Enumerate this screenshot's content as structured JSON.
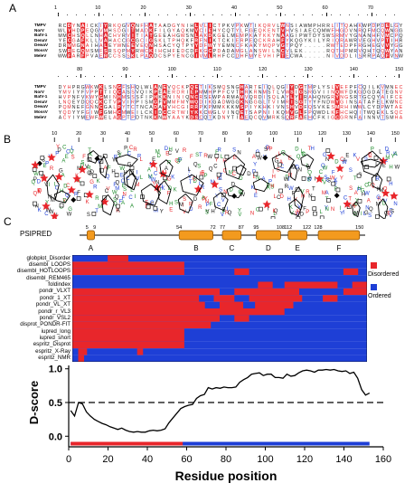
{
  "panels": {
    "a": "A",
    "b": "B",
    "c": "C"
  },
  "alignment": {
    "sequences": [
      "TMPV",
      "NorV",
      "BatV-1",
      "DenaV",
      "DewaV",
      "MossV",
      "MeleV"
    ],
    "block1_ticks": [
      "1",
      "10",
      "20",
      "30",
      "40",
      "50",
      "60",
      "70"
    ],
    "block2_ticks": [
      "80",
      "90",
      "100",
      "110",
      "120",
      "130",
      "140",
      "150"
    ]
  },
  "helical": {
    "ticks": [
      "10",
      "20",
      "30",
      "40",
      "50",
      "60",
      "70",
      "80",
      "90",
      "100",
      "110",
      "120",
      "130",
      "140",
      "150"
    ]
  },
  "psipred": {
    "label": "PSIPRED",
    "numbers": [
      "5",
      "9",
      "54",
      "72",
      "77",
      "87",
      "95",
      "108",
      "112",
      "122",
      "128",
      "150"
    ],
    "helices": [
      "A",
      "B",
      "C",
      "D",
      "E",
      "F"
    ]
  },
  "disorder": {
    "predictors": [
      "globplot_Disorder",
      "disembl_LOOPS",
      "disembl_HOTLOOPS",
      "disembl_REM465",
      "foldindex",
      "pondr_VLXT",
      "pondr_1_XT",
      "pondr_VL_XT",
      "pondr_r_VL3",
      "pondr_VSL2",
      "disprot_PONDR-FIT",
      "iupred_long",
      "iupred_short",
      "espritz_Disprot",
      "espritz_X-Ray",
      "espritz_NMR"
    ],
    "legend_disordered": "Disordered",
    "legend_ordered": "Ordered",
    "colors": {
      "disordered": "#e8262b",
      "ordered": "#1e3fd6"
    }
  },
  "chart_data": {
    "type": "line",
    "xlabel": "Residue position",
    "ylabel": "D-score",
    "xlim": [
      0,
      160
    ],
    "ylim": [
      -0.05,
      1.05
    ],
    "xticks": [
      "0",
      "20",
      "40",
      "60",
      "80",
      "100",
      "120",
      "140",
      "160"
    ],
    "yticks": [
      "0.0",
      "0.5",
      "1.0"
    ],
    "threshold": 0.5,
    "x": [
      1,
      3,
      5,
      7,
      9,
      11,
      13,
      15,
      17,
      19,
      21,
      23,
      25,
      27,
      29,
      31,
      33,
      35,
      37,
      39,
      41,
      43,
      45,
      47,
      49,
      51,
      53,
      55,
      57,
      59,
      61,
      63,
      65,
      67,
      69,
      71,
      73,
      75,
      77,
      79,
      81,
      83,
      85,
      87,
      89,
      91,
      93,
      95,
      97,
      99,
      101,
      103,
      105,
      107,
      109,
      111,
      113,
      115,
      117,
      119,
      121,
      123,
      125,
      127,
      129,
      131,
      133,
      135,
      137,
      139,
      141,
      143,
      145,
      147,
      149,
      151,
      153
    ],
    "y": [
      0.38,
      0.3,
      0.5,
      0.48,
      0.36,
      0.3,
      0.25,
      0.22,
      0.19,
      0.17,
      0.14,
      0.12,
      0.1,
      0.12,
      0.09,
      0.07,
      0.06,
      0.07,
      0.06,
      0.06,
      0.08,
      0.09,
      0.08,
      0.09,
      0.11,
      0.2,
      0.27,
      0.34,
      0.41,
      0.44,
      0.46,
      0.47,
      0.56,
      0.6,
      0.62,
      0.72,
      0.7,
      0.72,
      0.71,
      0.73,
      0.72,
      0.72,
      0.73,
      0.8,
      0.84,
      0.87,
      0.92,
      0.93,
      0.94,
      0.9,
      0.92,
      0.92,
      0.87,
      0.87,
      0.86,
      0.92,
      0.89,
      0.9,
      0.94,
      0.97,
      0.98,
      0.97,
      0.95,
      0.98,
      0.98,
      0.99,
      0.98,
      0.99,
      0.97,
      0.96,
      0.97,
      0.93,
      0.95,
      0.86,
      0.69,
      0.61,
      0.64
    ]
  }
}
